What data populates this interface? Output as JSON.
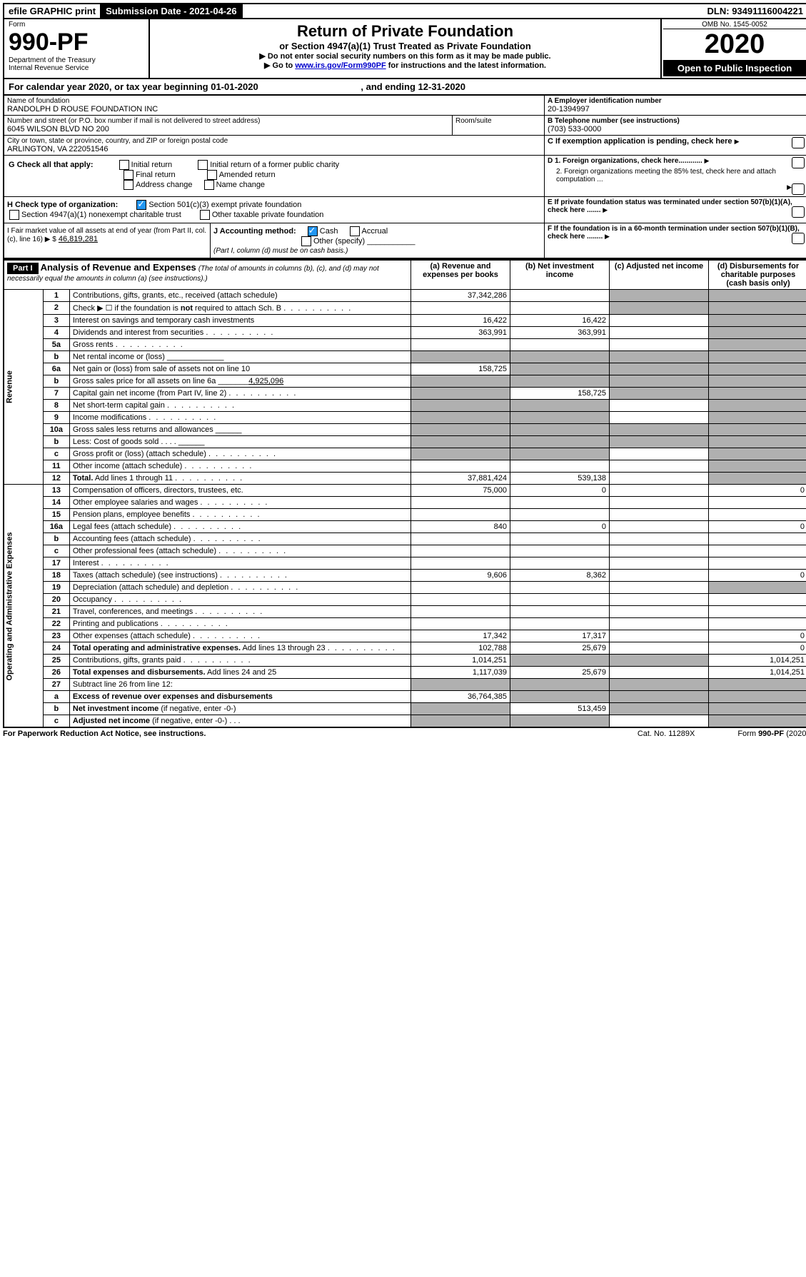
{
  "top": {
    "efile": "efile GRAPHIC print",
    "submission": "Submission Date - 2021-04-26",
    "dln": "DLN: 93491116004221"
  },
  "header": {
    "form_word": "Form",
    "form_no": "990-PF",
    "dept": "Department of the Treasury",
    "irs": "Internal Revenue Service",
    "title": "Return of Private Foundation",
    "subtitle": "or Section 4947(a)(1) Trust Treated as Private Foundation",
    "note1": "▶ Do not enter social security numbers on this form as it may be made public.",
    "note2_pre": "▶ Go to ",
    "note2_link": "www.irs.gov/Form990PF",
    "note2_post": " for instructions and the latest information.",
    "omb": "OMB No. 1545-0052",
    "year": "2020",
    "open": "Open to Public Inspection"
  },
  "cal": {
    "text": "For calendar year 2020, or tax year beginning 01-01-2020",
    "ending": ", and ending 12-31-2020"
  },
  "id": {
    "name_label": "Name of foundation",
    "name": "RANDOLPH D ROUSE FOUNDATION INC",
    "addr_label": "Number and street (or P.O. box number if mail is not delivered to street address)",
    "addr": "6045 WILSON BLVD NO 200",
    "room_label": "Room/suite",
    "city_label": "City or town, state or province, country, and ZIP or foreign postal code",
    "city": "ARLINGTON, VA  222051546",
    "a_label": "A Employer identification number",
    "a_val": "20-1394997",
    "b_label": "B Telephone number (see instructions)",
    "b_val": "(703) 533-0000",
    "c_label": "C If exemption application is pending, check here"
  },
  "checks": {
    "g_label": "G Check all that apply:",
    "g1": "Initial return",
    "g2": "Initial return of a former public charity",
    "g3": "Final return",
    "g4": "Amended return",
    "g5": "Address change",
    "g6": "Name change",
    "h_label": "H Check type of organization:",
    "h1": "Section 501(c)(3) exempt private foundation",
    "h2": "Section 4947(a)(1) nonexempt charitable trust",
    "h3": "Other taxable private foundation",
    "i_label": "I Fair market value of all assets at end of year (from Part II, col. (c), line 16) ▶ $",
    "i_val": "46,819,281",
    "j_label": "J Accounting method:",
    "j1": "Cash",
    "j2": "Accrual",
    "j3": "Other (specify)",
    "j_note": "(Part I, column (d) must be on cash basis.)",
    "d1": "D 1. Foreign organizations, check here............",
    "d2": "2. Foreign organizations meeting the 85% test, check here and attach computation ...",
    "e": "E  If private foundation status was terminated under section 507(b)(1)(A), check here .......",
    "f": "F  If the foundation is in a 60-month termination under section 507(b)(1)(B), check here ........"
  },
  "part1": {
    "label": "Part I",
    "title": "Analysis of Revenue and Expenses",
    "sub": "(The total of amounts in columns (b), (c), and (d) may not necessarily equal the amounts in column (a) (see instructions).)",
    "col_a": "(a)   Revenue and expenses per books",
    "col_b": "(b)  Net investment income",
    "col_c": "(c)  Adjusted net income",
    "col_d": "(d)  Disbursements for charitable purposes (cash basis only)"
  },
  "sections": {
    "revenue": "Revenue",
    "expenses": "Operating and Administrative Expenses"
  },
  "rows": [
    {
      "n": "1",
      "desc": "Contributions, gifts, grants, etc., received (attach schedule)",
      "a": "37,342,286",
      "b": "",
      "c": "g",
      "d": "g"
    },
    {
      "n": "2",
      "desc": "Check ▶ ☐ if the foundation is <b>not</b> required to attach Sch. B",
      "a": "",
      "b": "",
      "c": "g",
      "d": "g",
      "dots": true
    },
    {
      "n": "3",
      "desc": "Interest on savings and temporary cash investments",
      "a": "16,422",
      "b": "16,422",
      "c": "",
      "d": "g"
    },
    {
      "n": "4",
      "desc": "Dividends and interest from securities",
      "a": "363,991",
      "b": "363,991",
      "c": "",
      "d": "g",
      "dots": true
    },
    {
      "n": "5a",
      "desc": "Gross rents",
      "a": "",
      "b": "",
      "c": "",
      "d": "g",
      "dots": true
    },
    {
      "n": "b",
      "desc": "Net rental income or (loss)   _____________",
      "a": "g",
      "b": "g",
      "c": "g",
      "d": "g"
    },
    {
      "n": "6a",
      "desc": "Net gain or (loss) from sale of assets not on line 10",
      "a": "158,725",
      "b": "g",
      "c": "g",
      "d": "g"
    },
    {
      "n": "b",
      "desc": "Gross sales price for all assets on line 6a _______<u>4,925,096</u>",
      "a": "g",
      "b": "g",
      "c": "g",
      "d": "g"
    },
    {
      "n": "7",
      "desc": "Capital gain net income (from Part IV, line 2)",
      "a": "g",
      "b": "158,725",
      "c": "g",
      "d": "g",
      "dots": true
    },
    {
      "n": "8",
      "desc": "Net short-term capital gain",
      "a": "g",
      "b": "g",
      "c": "",
      "d": "g",
      "dots": true
    },
    {
      "n": "9",
      "desc": "Income modifications",
      "a": "g",
      "b": "g",
      "c": "",
      "d": "g",
      "dots": true
    },
    {
      "n": "10a",
      "desc": "Gross sales less returns and allowances   ______",
      "a": "g",
      "b": "g",
      "c": "g",
      "d": "g"
    },
    {
      "n": "b",
      "desc": "Less: Cost of goods sold       .   .   .   .   ______",
      "a": "g",
      "b": "g",
      "c": "g",
      "d": "g"
    },
    {
      "n": "c",
      "desc": "Gross profit or (loss) (attach schedule)",
      "a": "g",
      "b": "g",
      "c": "",
      "d": "g",
      "dots": true
    },
    {
      "n": "11",
      "desc": "Other income (attach schedule)",
      "a": "",
      "b": "",
      "c": "",
      "d": "g",
      "dots": true
    },
    {
      "n": "12",
      "desc": "<b>Total.</b> Add lines 1 through 11",
      "a": "37,881,424",
      "b": "539,138",
      "c": "",
      "d": "g",
      "dots": true
    },
    {
      "n": "13",
      "desc": "Compensation of officers, directors, trustees, etc.",
      "a": "75,000",
      "b": "0",
      "c": "",
      "d": "0"
    },
    {
      "n": "14",
      "desc": "Other employee salaries and wages",
      "a": "",
      "b": "",
      "c": "",
      "d": "",
      "dots": true
    },
    {
      "n": "15",
      "desc": "Pension plans, employee benefits",
      "a": "",
      "b": "",
      "c": "",
      "d": "",
      "dots": true
    },
    {
      "n": "16a",
      "desc": "Legal fees (attach schedule)",
      "a": "840",
      "b": "0",
      "c": "",
      "d": "0",
      "dots": true
    },
    {
      "n": "b",
      "desc": "Accounting fees (attach schedule)",
      "a": "",
      "b": "",
      "c": "",
      "d": "",
      "dots": true
    },
    {
      "n": "c",
      "desc": "Other professional fees (attach schedule)",
      "a": "",
      "b": "",
      "c": "",
      "d": "",
      "dots": true
    },
    {
      "n": "17",
      "desc": "Interest",
      "a": "",
      "b": "",
      "c": "",
      "d": "",
      "dots": true
    },
    {
      "n": "18",
      "desc": "Taxes (attach schedule) (see instructions)",
      "a": "9,606",
      "b": "8,362",
      "c": "",
      "d": "0",
      "dots": true
    },
    {
      "n": "19",
      "desc": "Depreciation (attach schedule) and depletion",
      "a": "",
      "b": "",
      "c": "",
      "d": "g",
      "dots": true
    },
    {
      "n": "20",
      "desc": "Occupancy",
      "a": "",
      "b": "",
      "c": "",
      "d": "",
      "dots": true
    },
    {
      "n": "21",
      "desc": "Travel, conferences, and meetings",
      "a": "",
      "b": "",
      "c": "",
      "d": "",
      "dots": true
    },
    {
      "n": "22",
      "desc": "Printing and publications",
      "a": "",
      "b": "",
      "c": "",
      "d": "",
      "dots": true
    },
    {
      "n": "23",
      "desc": "Other expenses (attach schedule)",
      "a": "17,342",
      "b": "17,317",
      "c": "",
      "d": "0",
      "dots": true
    },
    {
      "n": "24",
      "desc": "<b>Total operating and administrative expenses.</b> Add lines 13 through 23",
      "a": "102,788",
      "b": "25,679",
      "c": "",
      "d": "0",
      "dots": true
    },
    {
      "n": "25",
      "desc": "Contributions, gifts, grants paid",
      "a": "1,014,251",
      "b": "g",
      "c": "g",
      "d": "1,014,251",
      "dots": true
    },
    {
      "n": "26",
      "desc": "<b>Total expenses and disbursements.</b> Add lines 24 and 25",
      "a": "1,117,039",
      "b": "25,679",
      "c": "",
      "d": "1,014,251"
    },
    {
      "n": "27",
      "desc": "Subtract line 26 from line 12:",
      "a": "g",
      "b": "g",
      "c": "g",
      "d": "g"
    },
    {
      "n": "a",
      "desc": "<b>Excess of revenue over expenses and disbursements</b>",
      "a": "36,764,385",
      "b": "g",
      "c": "g",
      "d": "g"
    },
    {
      "n": "b",
      "desc": "<b>Net investment income</b> (if negative, enter -0-)",
      "a": "g",
      "b": "513,459",
      "c": "g",
      "d": "g"
    },
    {
      "n": "c",
      "desc": "<b>Adjusted net income</b> (if negative, enter -0-)    .   .   .",
      "a": "g",
      "b": "g",
      "c": "",
      "d": "g"
    }
  ],
  "footer": {
    "left": "For Paperwork Reduction Act Notice, see instructions.",
    "mid": "Cat. No. 11289X",
    "right": "Form 990-PF (2020)"
  }
}
